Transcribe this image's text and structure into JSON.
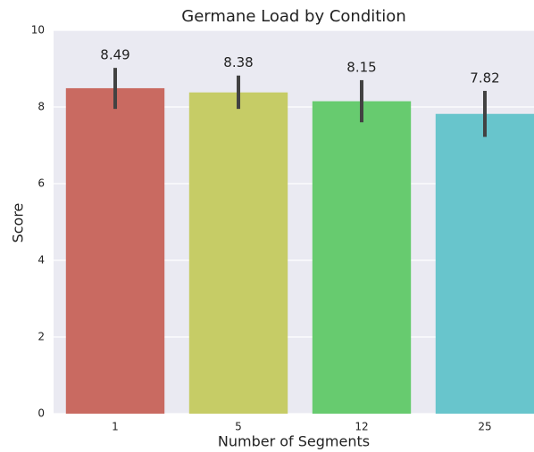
{
  "chart_data": {
    "type": "bar",
    "title": "Germane Load by Condition",
    "x_label": "Number of Segments",
    "y_label": "Score",
    "categories": [
      "1",
      "5",
      "12",
      "25"
    ],
    "values": [
      8.49,
      8.38,
      8.15,
      7.82
    ],
    "ci_low": [
      7.95,
      7.95,
      7.6,
      7.22
    ],
    "ci_high": [
      9.02,
      8.82,
      8.7,
      8.42
    ],
    "colors": [
      "#c96a61",
      "#c6cc66",
      "#67cb6f",
      "#68c5cc"
    ],
    "ylim": [
      0,
      10
    ],
    "yticks": [
      0,
      2,
      4,
      6,
      8,
      10
    ],
    "grid": true
  }
}
